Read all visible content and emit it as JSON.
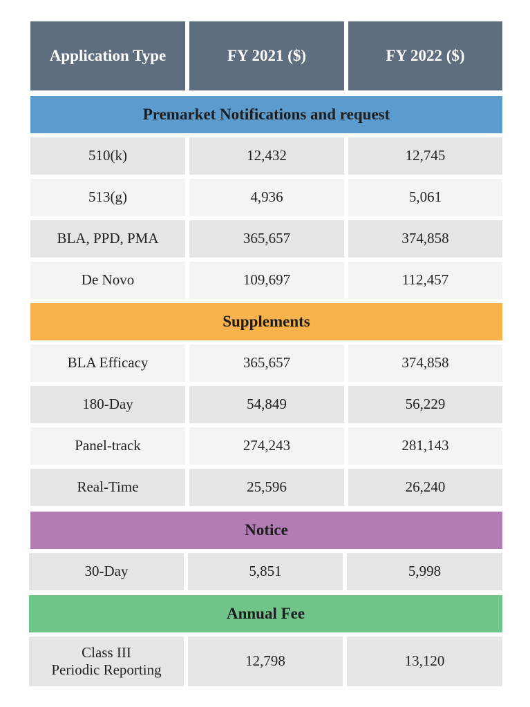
{
  "header": {
    "col1": "Application Type",
    "col2": "FY 2021 ($)",
    "col3": "FY 2022 ($)"
  },
  "sections": [
    {
      "title": "Premarket Notifications and request",
      "color": "#5b9bcd",
      "rows": [
        {
          "type": "510(k)",
          "fy2021": "12,432",
          "fy2022": "12,745"
        },
        {
          "type": "513(g)",
          "fy2021": "4,936",
          "fy2022": "5,061"
        },
        {
          "type": "BLA, PPD, PMA",
          "fy2021": "365,657",
          "fy2022": "374,858"
        },
        {
          "type": "De Novo",
          "fy2021": "109,697",
          "fy2022": "112,457"
        }
      ]
    },
    {
      "title": "Supplements",
      "color": "#f8b24b",
      "rows": [
        {
          "type": "BLA Efficacy",
          "fy2021": "365,657",
          "fy2022": "374,858"
        },
        {
          "type": "180-Day",
          "fy2021": "54,849",
          "fy2022": "56,229"
        },
        {
          "type": "Panel-track",
          "fy2021": "274,243",
          "fy2022": "281,143"
        },
        {
          "type": "Real-Time",
          "fy2021": "25,596",
          "fy2022": "26,240"
        }
      ]
    },
    {
      "title": "Notice",
      "color": "#b27db5",
      "rows": [
        {
          "type": "30-Day",
          "fy2021": "5,851",
          "fy2022": "5,998"
        }
      ]
    },
    {
      "title": "Annual Fee",
      "color": "#6fc489",
      "rows": [
        {
          "type_line1": "Class III",
          "type_line2": "Periodic Reporting",
          "fy2021": "12,798",
          "fy2022": "13,120"
        }
      ]
    }
  ]
}
